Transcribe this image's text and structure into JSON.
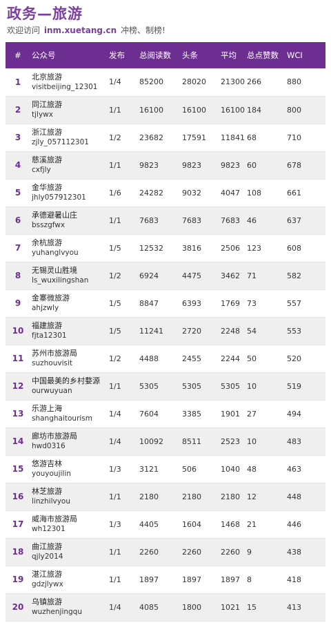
{
  "header": {
    "title": "政务—旅游",
    "subtitle_prefix": "欢迎访问",
    "subtitle_site": "inm.xuetang.cn",
    "subtitle_suffix": "冲榜、制榜!"
  },
  "table": {
    "columns": {
      "rank": "#",
      "account": "公众号",
      "publish": "发布",
      "total_reads": "总阅读数",
      "headline": "头条",
      "average": "平均",
      "total_likes": "总点赞数",
      "wci": "WCI"
    },
    "rows": [
      {
        "rank": "1",
        "name": "北京旅游",
        "id": "visitbeijing_12301",
        "publish": "1/4",
        "total_reads": "85200",
        "headline": "28020",
        "average": "21300",
        "likes": "266",
        "wci": "880"
      },
      {
        "rank": "2",
        "name": "同江旅游",
        "id": "tjlywx",
        "publish": "1/1",
        "total_reads": "16100",
        "headline": "16100",
        "average": "16100",
        "likes": "184",
        "wci": "800"
      },
      {
        "rank": "3",
        "name": "浙江旅游",
        "id": "zjly_057112301",
        "publish": "1/2",
        "total_reads": "23682",
        "headline": "17591",
        "average": "11841",
        "likes": "68",
        "wci": "710"
      },
      {
        "rank": "4",
        "name": "慈溪旅游",
        "id": "cxfjly",
        "publish": "1/1",
        "total_reads": "9823",
        "headline": "9823",
        "average": "9823",
        "likes": "60",
        "wci": "678"
      },
      {
        "rank": "5",
        "name": "金华旅游",
        "id": "jhly057912301",
        "publish": "1/6",
        "total_reads": "24282",
        "headline": "9032",
        "average": "4047",
        "likes": "108",
        "wci": "661"
      },
      {
        "rank": "6",
        "name": "承德避暑山庄",
        "id": "bsszgfwx",
        "publish": "1/1",
        "total_reads": "7683",
        "headline": "7683",
        "average": "7683",
        "likes": "46",
        "wci": "637"
      },
      {
        "rank": "7",
        "name": "余杭旅游",
        "id": "yuhanglvyou",
        "publish": "1/5",
        "total_reads": "12532",
        "headline": "3816",
        "average": "2506",
        "likes": "123",
        "wci": "608"
      },
      {
        "rank": "8",
        "name": "无锡灵山胜境",
        "id": "ls_wuxilingshan",
        "publish": "1/2",
        "total_reads": "6924",
        "headline": "4475",
        "average": "3462",
        "likes": "71",
        "wci": "582"
      },
      {
        "rank": "9",
        "name": "金寨微旅游",
        "id": "ahjzwly",
        "publish": "1/5",
        "total_reads": "8847",
        "headline": "6393",
        "average": "1769",
        "likes": "73",
        "wci": "557"
      },
      {
        "rank": "10",
        "name": "福建旅游",
        "id": "fjta12301",
        "publish": "1/5",
        "total_reads": "11241",
        "headline": "2720",
        "average": "2248",
        "likes": "54",
        "wci": "553"
      },
      {
        "rank": "11",
        "name": "苏州市旅游局",
        "id": "suzhouvisit",
        "publish": "1/2",
        "total_reads": "4488",
        "headline": "2455",
        "average": "2244",
        "likes": "50",
        "wci": "520"
      },
      {
        "rank": "12",
        "name": "中国最美的乡村婺源",
        "id": "ourwuyuan",
        "publish": "1/1",
        "total_reads": "5305",
        "headline": "5305",
        "average": "5305",
        "likes": "10",
        "wci": "519"
      },
      {
        "rank": "13",
        "name": "乐游上海",
        "id": "shanghaitourism",
        "publish": "1/4",
        "total_reads": "7604",
        "headline": "3385",
        "average": "1901",
        "likes": "27",
        "wci": "494"
      },
      {
        "rank": "14",
        "name": "廊坊市旅游局",
        "id": "hwd0316",
        "publish": "1/4",
        "total_reads": "10092",
        "headline": "8511",
        "average": "2523",
        "likes": "10",
        "wci": "483"
      },
      {
        "rank": "15",
        "name": "悠游吉林",
        "id": "youyoujilin",
        "publish": "1/3",
        "total_reads": "3121",
        "headline": "506",
        "average": "1040",
        "likes": "48",
        "wci": "463"
      },
      {
        "rank": "16",
        "name": "林芝旅游",
        "id": "linzhilvyou",
        "publish": "1/1",
        "total_reads": "2180",
        "headline": "2180",
        "average": "2180",
        "likes": "12",
        "wci": "448"
      },
      {
        "rank": "17",
        "name": "威海市旅游局",
        "id": "wh12301",
        "publish": "1/3",
        "total_reads": "4405",
        "headline": "1604",
        "average": "1468",
        "likes": "21",
        "wci": "446"
      },
      {
        "rank": "18",
        "name": "曲江旅游",
        "id": "qjly2014",
        "publish": "1/1",
        "total_reads": "2260",
        "headline": "2260",
        "average": "2260",
        "likes": "9",
        "wci": "438"
      },
      {
        "rank": "19",
        "name": "湛江旅游",
        "id": "gdzjlywx",
        "publish": "1/1",
        "total_reads": "1897",
        "headline": "1897",
        "average": "1897",
        "likes": "8",
        "wci": "418"
      },
      {
        "rank": "20",
        "name": "乌镇旅游",
        "id": "wuzhenjingqu",
        "publish": "1/4",
        "total_reads": "4085",
        "headline": "1800",
        "average": "1021",
        "likes": "15",
        "wci": "413"
      }
    ]
  }
}
